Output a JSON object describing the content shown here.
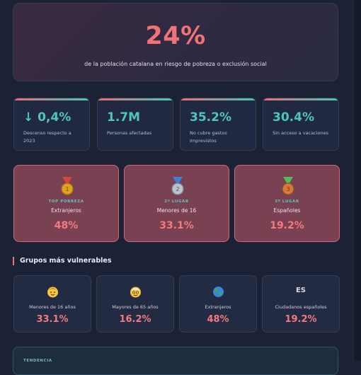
{
  "hero": {
    "value": "24%",
    "caption": "de la población catalana en riesgo de pobreza o exclusión social"
  },
  "stats": [
    {
      "value": "↓ 0,4%",
      "label": "Descenso respecto a 2023"
    },
    {
      "value": "1.7M",
      "label": "Personas afectadas"
    },
    {
      "value": "35.2%",
      "label": "No cubre gastos imprevistos"
    },
    {
      "value": "30.4%",
      "label": "Sin acceso a vacaciones"
    }
  ],
  "ranking": [
    {
      "tag": "TOP POBREZA",
      "name": "Extranjeros",
      "value": "48%",
      "medal": "gold-medal-icon",
      "medal_color": "#e0a11e"
    },
    {
      "tag": "2º LUGAR",
      "name": "Menores de 16",
      "value": "33.1%",
      "medal": "silver-medal-icon",
      "medal_color": "#b9c3d0"
    },
    {
      "tag": "3º LUGAR",
      "name": "Españoles",
      "value": "19.2%",
      "medal": "bronze-medal-icon",
      "medal_color": "#d47a3a"
    }
  ],
  "section": {
    "title": "Grupos más vulnerables"
  },
  "groups": [
    {
      "icon": "child-face-icon",
      "label": "Menores de 16 años",
      "value": "33.1%"
    },
    {
      "icon": "older-person-face-icon",
      "label": "Mayores de 65 años",
      "value": "16.2%"
    },
    {
      "icon": "globe-icon",
      "label": "Extranjeros",
      "value": "48%"
    },
    {
      "icon": "spain-flag-icon",
      "icon_text": "ES",
      "label": "Ciudadanos españoles",
      "value": "19.2%"
    }
  ],
  "trend": {
    "tag": "TENDENCIA"
  },
  "colors": {
    "accent_red": "#f07377",
    "accent_teal": "#4cc7bd",
    "background": "#1b2236"
  }
}
